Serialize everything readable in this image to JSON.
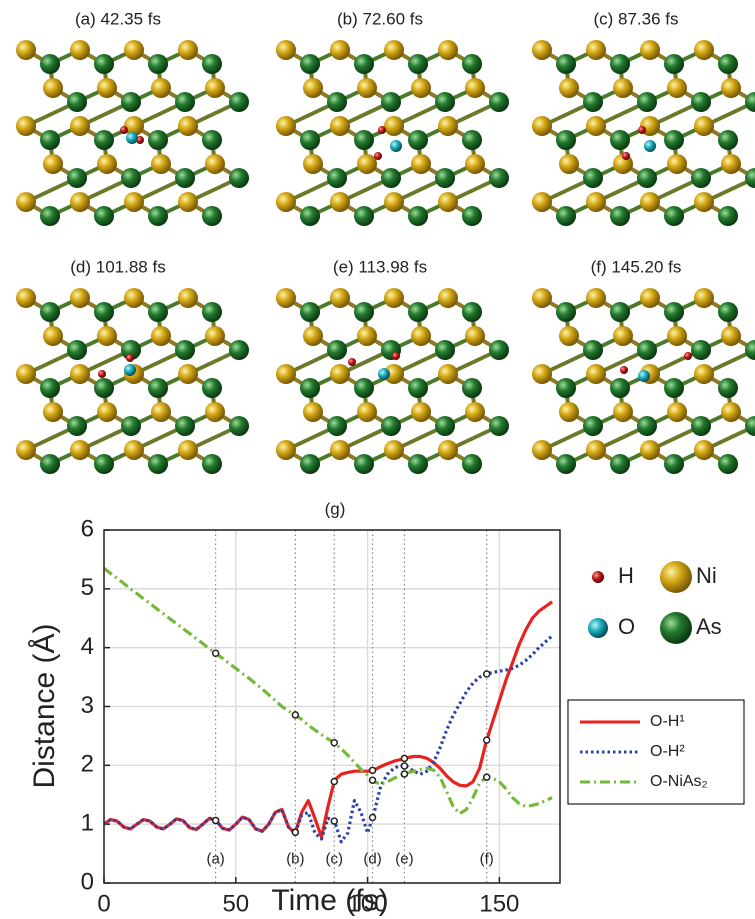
{
  "panels": [
    {
      "label": "(a) 42.35 fs"
    },
    {
      "label": "(b) 72.60 fs"
    },
    {
      "label": "(c) 87.36 fs"
    },
    {
      "label": "(d) 101.88 fs"
    },
    {
      "label": "(e) 113.98 fs"
    },
    {
      "label": "(f) 145.20 fs"
    }
  ],
  "atom_legend": [
    {
      "label": "H",
      "color": "#c01818"
    },
    {
      "label": "Ni",
      "color": "#d4a817"
    },
    {
      "label": "O",
      "color": "#1aa8b8"
    },
    {
      "label": "As",
      "color": "#237a2e"
    }
  ],
  "chart_data": {
    "type": "line",
    "title": "(g)",
    "xlabel": "Time (fs)",
    "ylabel": "Distance (Å)",
    "xlim": [
      0,
      173
    ],
    "ylim": [
      0,
      6
    ],
    "xticks": [
      0,
      50,
      100,
      150
    ],
    "yticks": [
      0,
      1,
      2,
      3,
      4,
      5,
      6
    ],
    "grid": true,
    "events": [
      {
        "x": 42.35,
        "label": "(a)"
      },
      {
        "x": 72.6,
        "label": "(b)"
      },
      {
        "x": 87.36,
        "label": "(c)"
      },
      {
        "x": 101.88,
        "label": "(d)"
      },
      {
        "x": 113.98,
        "label": "(e)"
      },
      {
        "x": 145.2,
        "label": "(f)"
      }
    ],
    "x": [
      0,
      2.5,
      5,
      7.5,
      10,
      12.5,
      15,
      17.5,
      20,
      22.5,
      25,
      27.5,
      30,
      32.5,
      35,
      37.5,
      40,
      42.5,
      45,
      47.5,
      50,
      52.5,
      55,
      57.5,
      60,
      62.5,
      65,
      67.5,
      70,
      72.5,
      75,
      77.5,
      80,
      82.5,
      85,
      87.5,
      90,
      92.5,
      95,
      97.5,
      100,
      102.5,
      105,
      107.5,
      110,
      112.5,
      115,
      117.5,
      120,
      122.5,
      125,
      127.5,
      130,
      132.5,
      135,
      137.5,
      140,
      142.5,
      145,
      147.5,
      150,
      152.5,
      155,
      157.5,
      160,
      162.5,
      165,
      167.5,
      170
    ],
    "series": [
      {
        "name": "O-H¹",
        "color": "#e8231f",
        "dash": "solid",
        "values": [
          1.0,
          1.08,
          1.05,
          0.95,
          0.92,
          1.0,
          1.08,
          1.05,
          0.95,
          0.92,
          1.0,
          1.09,
          1.06,
          0.94,
          0.91,
          1.0,
          1.1,
          1.06,
          0.93,
          0.9,
          1.0,
          1.12,
          1.08,
          0.92,
          0.88,
          1.0,
          1.2,
          1.25,
          0.95,
          0.85,
          1.2,
          1.4,
          1.1,
          0.78,
          1.3,
          1.75,
          1.85,
          1.88,
          1.9,
          1.9,
          1.9,
          1.92,
          1.98,
          2.03,
          2.07,
          2.1,
          2.13,
          2.15,
          2.15,
          2.12,
          2.05,
          1.95,
          1.82,
          1.72,
          1.66,
          1.65,
          1.72,
          1.95,
          2.4,
          2.75,
          3.1,
          3.45,
          3.75,
          4.05,
          4.3,
          4.5,
          4.62,
          4.7,
          4.78
        ]
      },
      {
        "name": "O-H²",
        "color": "#2a3fa8",
        "dash": "dotted",
        "values": [
          1.0,
          1.08,
          1.05,
          0.95,
          0.92,
          1.0,
          1.08,
          1.05,
          0.95,
          0.92,
          1.0,
          1.09,
          1.06,
          0.94,
          0.91,
          1.0,
          1.1,
          1.06,
          0.93,
          0.9,
          1.0,
          1.12,
          1.08,
          0.92,
          0.88,
          1.0,
          1.2,
          1.25,
          0.95,
          0.85,
          1.15,
          1.2,
          0.85,
          0.75,
          1.1,
          1.05,
          0.7,
          0.85,
          1.4,
          1.2,
          0.85,
          1.2,
          1.65,
          1.85,
          1.95,
          2.0,
          1.98,
          1.9,
          1.85,
          1.9,
          2.05,
          2.3,
          2.6,
          2.85,
          3.05,
          3.25,
          3.4,
          3.5,
          3.55,
          3.58,
          3.6,
          3.62,
          3.65,
          3.7,
          3.78,
          3.88,
          4.0,
          4.1,
          4.2
        ]
      },
      {
        "name": "O-NiAs₂",
        "color": "#76b83a",
        "dash": "dashdot",
        "values": [
          5.35,
          5.26,
          5.18,
          5.09,
          5.0,
          4.92,
          4.83,
          4.75,
          4.66,
          4.58,
          4.49,
          4.41,
          4.32,
          4.24,
          4.15,
          4.07,
          3.98,
          3.9,
          3.82,
          3.73,
          3.65,
          3.56,
          3.48,
          3.39,
          3.3,
          3.2,
          3.1,
          3.0,
          2.92,
          2.86,
          2.78,
          2.68,
          2.6,
          2.52,
          2.45,
          2.38,
          2.28,
          2.17,
          2.05,
          1.93,
          1.83,
          1.72,
          1.68,
          1.72,
          1.78,
          1.83,
          1.87,
          1.9,
          1.93,
          1.95,
          1.92,
          1.8,
          1.55,
          1.3,
          1.18,
          1.25,
          1.45,
          1.7,
          1.8,
          1.78,
          1.72,
          1.6,
          1.45,
          1.35,
          1.3,
          1.32,
          1.35,
          1.4,
          1.45
        ]
      }
    ]
  }
}
